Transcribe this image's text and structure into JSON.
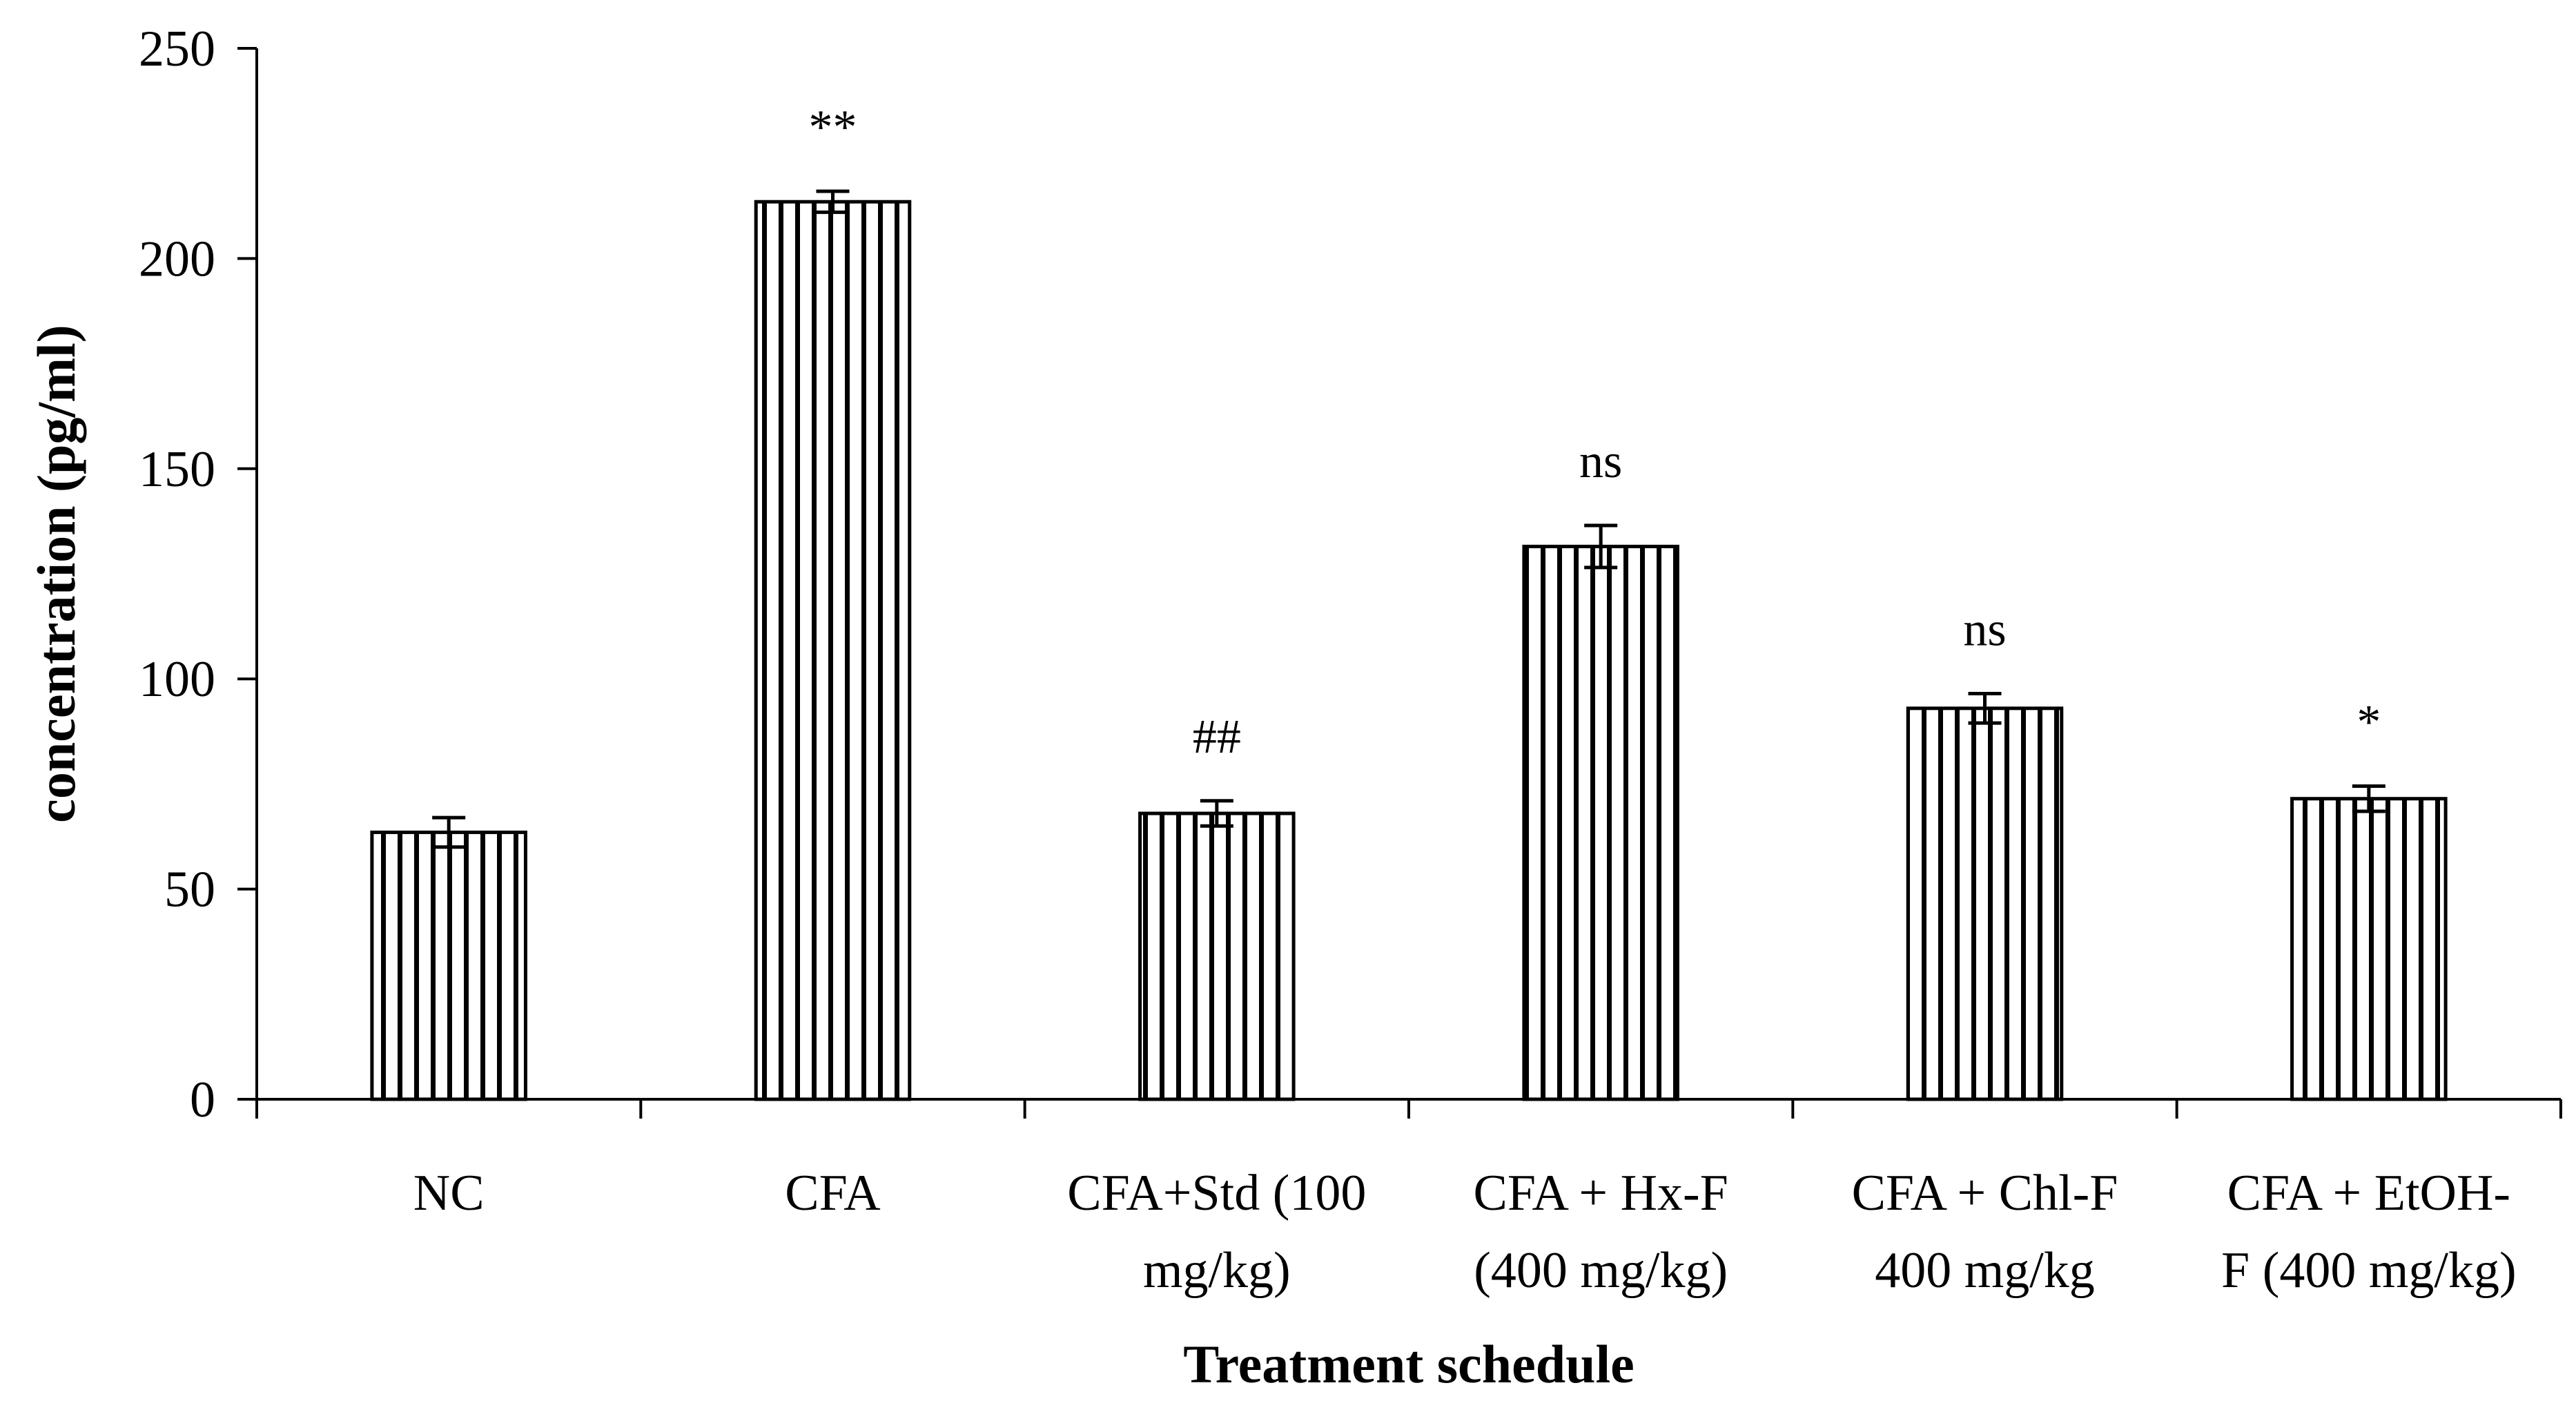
{
  "chart_data": {
    "type": "bar",
    "title": "",
    "xlabel": "Treatment schedule",
    "ylabel": "concentration (pg/ml)",
    "ylim": [
      0,
      250
    ],
    "yticks": [
      0,
      50,
      100,
      150,
      200,
      250
    ],
    "grid": false,
    "legend": "none",
    "bar_pattern": "vertical-hatch",
    "colors": {
      "bar_fill": "#ffffff",
      "hatch": "#000000",
      "axis": "#000000"
    },
    "categories": [
      [
        "NC"
      ],
      [
        "CFA"
      ],
      [
        "CFA+Std (100",
        "mg/kg)"
      ],
      [
        "CFA + Hx-F",
        "(400 mg/kg)"
      ],
      [
        "CFA + Chl-F",
        "400 mg/kg"
      ],
      [
        "CFA + EtOH-",
        "F (400 mg/kg)"
      ]
    ],
    "values": [
      63.5,
      213.5,
      68,
      131.5,
      93,
      71.5
    ],
    "errors": [
      3.5,
      2.5,
      3,
      5,
      3.5,
      3
    ],
    "annotations": [
      "",
      "**",
      "##",
      "ns",
      "ns",
      "*"
    ]
  }
}
